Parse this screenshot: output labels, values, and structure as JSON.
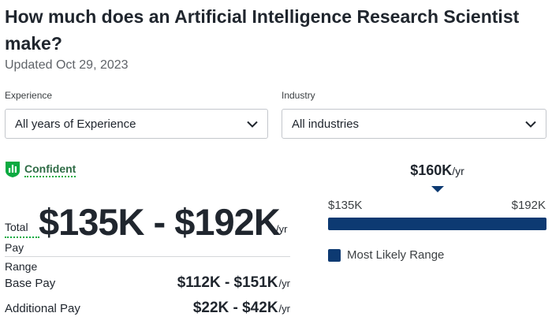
{
  "header": {
    "title": "How much does an Artificial Intelligence Research Scientist make?",
    "updated": "Updated Oct 29, 2023"
  },
  "filters": {
    "experience": {
      "label": "Experience",
      "value": "All years of Experience"
    },
    "industry": {
      "label": "Industry",
      "value": "All industries"
    }
  },
  "confidence": {
    "label": "Confident",
    "icon": "bar-chart-shield-icon",
    "color": "#0caa41"
  },
  "total_pay": {
    "label_lines": [
      "Total",
      "Pay",
      "Range"
    ],
    "range": "$135K - $192K",
    "unit": "/yr"
  },
  "breakdown": [
    {
      "name": "Base Pay",
      "amount": "$112K - $151K",
      "unit": "/yr"
    },
    {
      "name": "Additional Pay",
      "amount": "$22K - $42K",
      "unit": "/yr"
    }
  ],
  "range_chart": {
    "median": "$160K",
    "median_unit": "/yr",
    "low": "$135K",
    "high": "$192K",
    "legend": "Most Likely Range",
    "bar_color": "#0d3a72"
  }
}
